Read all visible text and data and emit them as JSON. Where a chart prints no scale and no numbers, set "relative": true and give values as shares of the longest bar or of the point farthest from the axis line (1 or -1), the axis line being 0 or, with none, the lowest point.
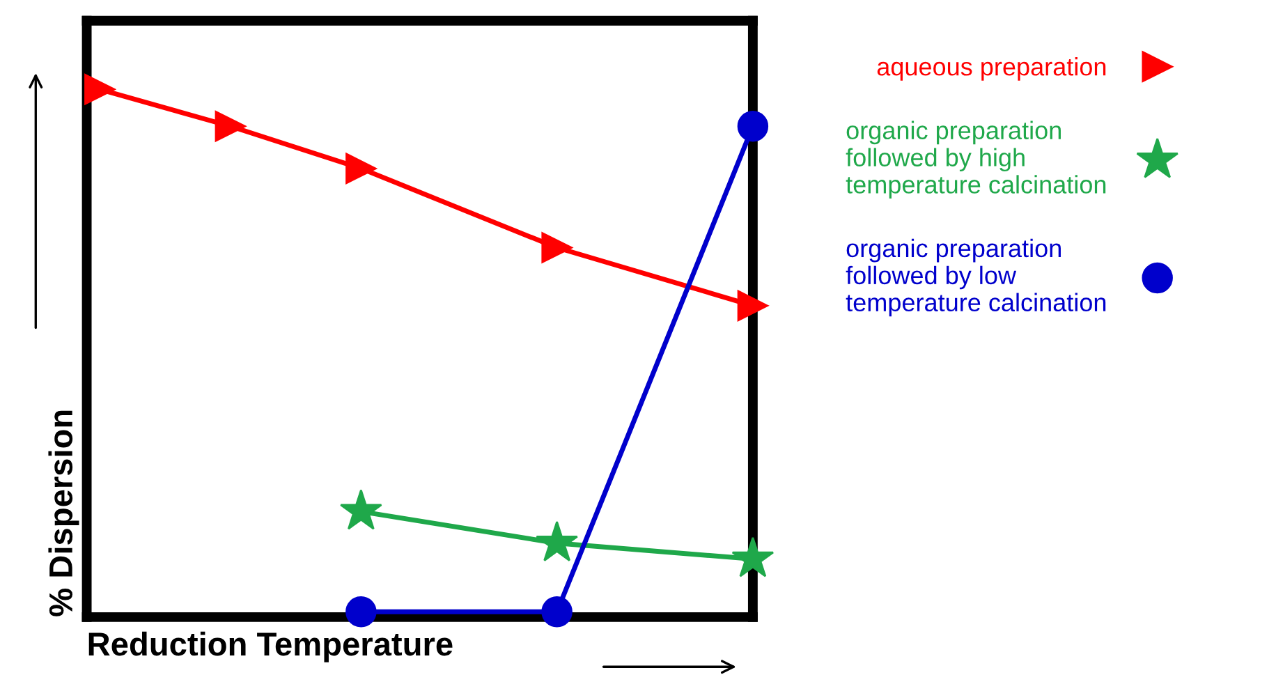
{
  "chart_data": {
    "type": "line",
    "relative": true,
    "xlabel": "Reduction Temperature",
    "ylabel": "% Dispersion",
    "legend": "right",
    "grid": false,
    "categories": [
      null,
      null,
      null,
      null,
      null,
      null,
      null,
      null,
      null,
      null,
      null
    ],
    "series": [
      {
        "name": "aqueous preparation",
        "color": "#ff0000",
        "marker": "triangle",
        "values": [
          1,
          null,
          0.93,
          null,
          0.85,
          null,
          null,
          0.7,
          null,
          null,
          0.59
        ]
      },
      {
        "name": "organic preparation\nfollowed by high\ntemperature calcination",
        "color": "#1fa84a",
        "marker": "star",
        "values": [
          null,
          null,
          null,
          null,
          0.2,
          null,
          null,
          0.14,
          null,
          null,
          0.11
        ]
      },
      {
        "name": "organic preparation\nfollowed by low\ntemperature calcination",
        "color": "#0000cc",
        "marker": "circle",
        "values": [
          null,
          null,
          null,
          null,
          0.01,
          null,
          null,
          0.01,
          null,
          null,
          0.93
        ]
      }
    ]
  }
}
